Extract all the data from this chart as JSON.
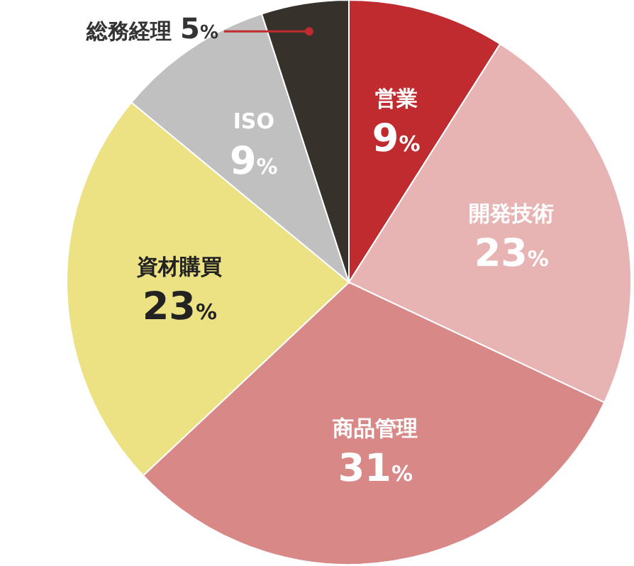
{
  "chart_data": {
    "type": "pie",
    "categories": [
      "営業",
      "開発技術",
      "商品管理",
      "資材購買",
      "ISO",
      "総務経理"
    ],
    "values": [
      9,
      23,
      31,
      23,
      9,
      5
    ],
    "colors": [
      "#bf2b2f",
      "#e7b3b3",
      "#d98888",
      "#ece183",
      "#c0c0c0",
      "#36312a"
    ],
    "value_labels": [
      "9%",
      "23%",
      "31%",
      "23%",
      "9%",
      "5%"
    ]
  }
}
